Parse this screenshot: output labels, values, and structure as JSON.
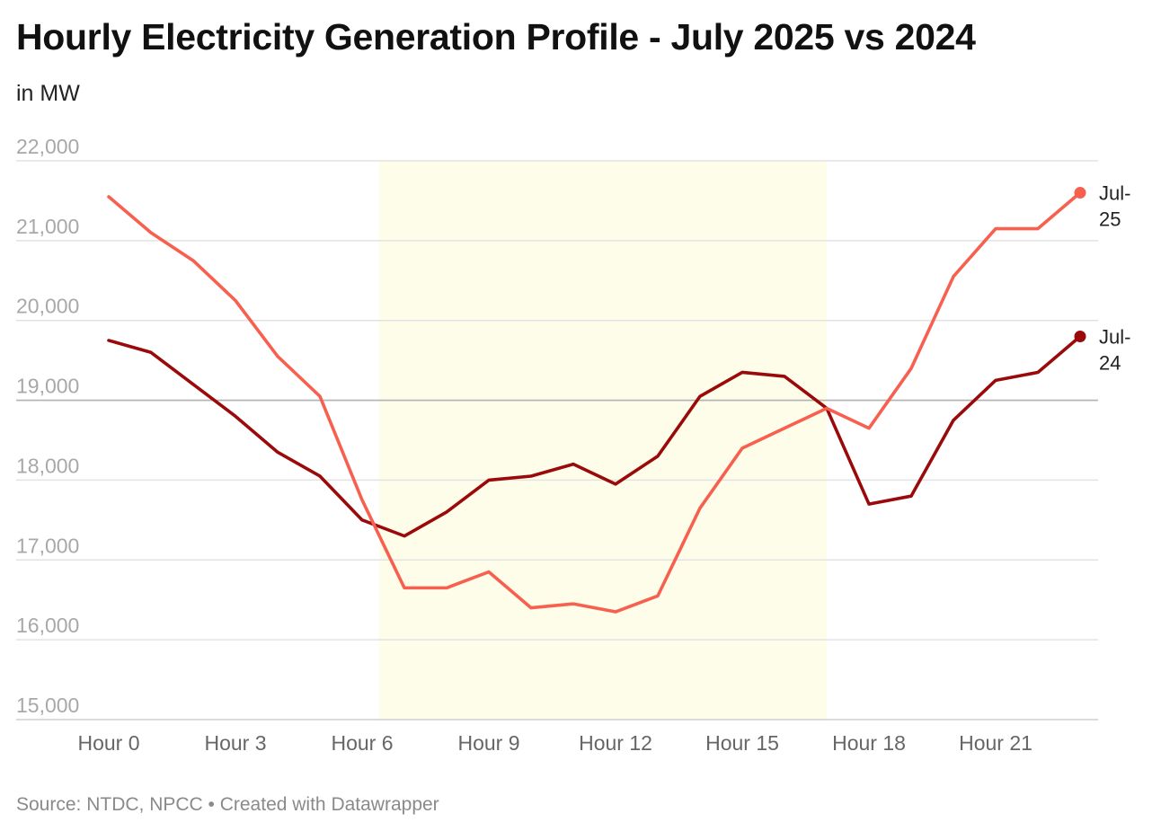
{
  "header": {
    "title": "Hourly Electricity Generation Profile - July 2025 vs 2024",
    "subtitle": "in MW"
  },
  "footer": {
    "source": "Source: NTDC, NPCC • Created with Datawrapper"
  },
  "chart_data": {
    "type": "line",
    "title": "Hourly Electricity Generation Profile - July 2025 vs 2024",
    "subtitle": "in MW",
    "x": [
      0,
      1,
      2,
      3,
      4,
      5,
      6,
      7,
      8,
      9,
      10,
      11,
      12,
      13,
      14,
      15,
      16,
      17,
      18,
      19,
      20,
      21,
      22,
      23
    ],
    "x_tick_values": [
      0,
      3,
      6,
      9,
      12,
      15,
      18,
      21
    ],
    "x_tick_labels": [
      "Hour 0",
      "Hour 3",
      "Hour 6",
      "Hour 9",
      "Hour 12",
      "Hour 15",
      "Hour 18",
      "Hour 21"
    ],
    "y_ticks": [
      15000,
      16000,
      17000,
      18000,
      19000,
      20000,
      21000,
      22000
    ],
    "y_tick_labels": [
      "15,000",
      "16,000",
      "17,000",
      "18,000",
      "19,000",
      "20,000",
      "21,000",
      "22,000"
    ],
    "ylim": [
      15000,
      22000
    ],
    "xlim": [
      0,
      23
    ],
    "grid": true,
    "highlight_band": {
      "x_start": 6.4,
      "x_end": 17,
      "color": "#fdfdea"
    },
    "reference_line": {
      "y": 19000,
      "color": "#b3b3b3"
    },
    "series": [
      {
        "name": "Jul-25",
        "label_lines": [
          "Jul-",
          "25"
        ],
        "color": "#f7604f",
        "values": [
          21550,
          21100,
          20750,
          20250,
          19550,
          19050,
          17750,
          16650,
          16650,
          16850,
          16400,
          16450,
          16350,
          16550,
          17650,
          18400,
          18650,
          18900,
          18650,
          19400,
          20550,
          21150,
          21150,
          21600
        ]
      },
      {
        "name": "Jul-24",
        "label_lines": [
          "Jul-",
          "24"
        ],
        "color": "#9b0a0a",
        "values": [
          19750,
          19600,
          19200,
          18800,
          18350,
          18050,
          17500,
          17300,
          17600,
          18000,
          18050,
          18200,
          17950,
          18300,
          19050,
          19350,
          19300,
          18900,
          17700,
          17800,
          18750,
          19250,
          19350,
          19800
        ]
      }
    ],
    "legend": "end-of-line labels"
  }
}
